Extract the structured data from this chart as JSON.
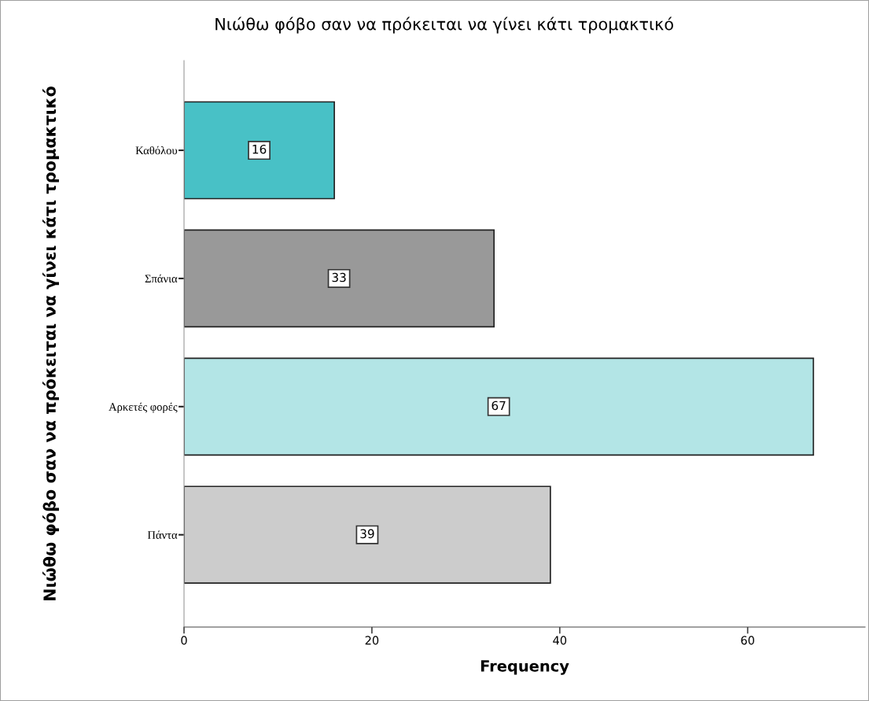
{
  "chart_data": {
    "type": "bar",
    "orientation": "horizontal",
    "title": "Νιώθω φόβο σαν να πρόκειται να γίνει κάτι τρομακτικό",
    "xlabel": "Frequency",
    "ylabel": "Νιώθω φόβο σαν να πρόκειται να γίνει κάτι τρομακτικό",
    "categories": [
      "Καθόλου",
      "Σπάνια",
      "Αρκετές φορές",
      "Πάντα"
    ],
    "values": [
      16,
      33,
      67,
      39
    ],
    "colors": [
      "#48c1c6",
      "#999999",
      "#b3e5e6",
      "#cccccc"
    ],
    "xlim": [
      0,
      72.5
    ],
    "xticks": [
      0,
      20,
      40,
      60
    ],
    "data_labels": true,
    "grid": false,
    "legend": false
  }
}
